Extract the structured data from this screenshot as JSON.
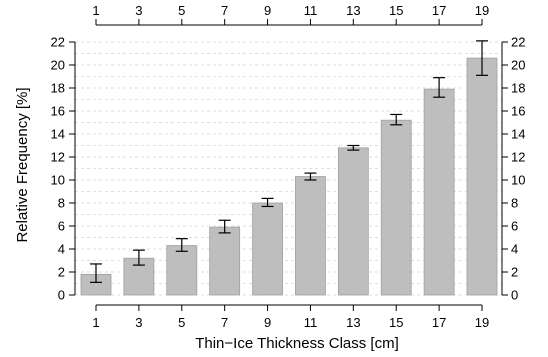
{
  "chart_data": {
    "type": "bar",
    "xlabel": "Thin−Ice Thickness Class [cm]",
    "ylabel": "Relative Frequency [%]",
    "categories": [
      "1",
      "3",
      "5",
      "7",
      "9",
      "11",
      "13",
      "15",
      "17",
      "19"
    ],
    "values": [
      1.8,
      3.2,
      4.3,
      5.9,
      8.0,
      10.3,
      12.8,
      15.2,
      17.9,
      20.6
    ],
    "error_low": [
      1.1,
      2.6,
      3.8,
      5.4,
      7.7,
      10.0,
      12.6,
      14.8,
      17.2,
      19.1
    ],
    "error_high": [
      2.7,
      3.9,
      4.9,
      6.5,
      8.4,
      10.6,
      13.0,
      15.7,
      18.9,
      22.1
    ],
    "ylim": [
      0,
      22
    ],
    "yticks": [
      "0",
      "2",
      "4",
      "6",
      "8",
      "10",
      "12",
      "14",
      "16",
      "18",
      "20",
      "22"
    ],
    "grid": true,
    "bar_color": "#bebebe",
    "bar_edge_color": "#a0a0a0"
  }
}
